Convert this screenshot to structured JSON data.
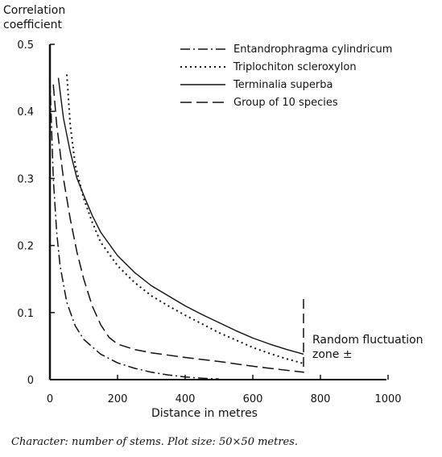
{
  "caption": "Character: number of stems.  Plot size: 50×50 metres.",
  "annotation": {
    "line1": "Random fluctuation",
    "line2": "zone ±"
  },
  "chart_data": {
    "type": "line",
    "ylabel_lines": [
      "Correlation",
      "coefficient"
    ],
    "xlabel": "Distance in metres",
    "xlim": [
      0,
      1000
    ],
    "ylim": [
      0,
      0.5
    ],
    "x_ticks": [
      "0",
      "200",
      "400",
      "600",
      "800",
      "1000"
    ],
    "y_ticks": [
      "0",
      "0.1",
      "0.2",
      "0.3",
      "0.4",
      "0.5"
    ],
    "legend_position": "top-right",
    "series": [
      {
        "name": "Entandrophragma cylindricum",
        "style": "dash-dot",
        "x": [
          0,
          10,
          20,
          30,
          50,
          75,
          100,
          150,
          200,
          250,
          300,
          350,
          400,
          450,
          500
        ],
        "y": [
          0.45,
          0.3,
          0.22,
          0.17,
          0.115,
          0.08,
          0.06,
          0.038,
          0.025,
          0.017,
          0.011,
          0.007,
          0.004,
          0.002,
          0.001
        ]
      },
      {
        "name": "Triplochiton scleroxylon",
        "style": "dotted",
        "x": [
          50,
          60,
          75,
          100,
          125,
          150,
          200,
          250,
          300,
          350,
          400,
          450,
          500,
          550,
          600,
          650,
          700,
          750
        ],
        "y": [
          0.455,
          0.38,
          0.32,
          0.27,
          0.235,
          0.205,
          0.17,
          0.145,
          0.125,
          0.11,
          0.096,
          0.083,
          0.07,
          0.059,
          0.048,
          0.039,
          0.031,
          0.024
        ]
      },
      {
        "name": "Terminalia superba",
        "style": "solid",
        "x": [
          25,
          40,
          60,
          80,
          100,
          125,
          150,
          200,
          250,
          300,
          350,
          400,
          450,
          500,
          550,
          600,
          650,
          700,
          750
        ],
        "y": [
          0.45,
          0.39,
          0.34,
          0.3,
          0.275,
          0.245,
          0.22,
          0.185,
          0.16,
          0.14,
          0.125,
          0.11,
          0.097,
          0.085,
          0.073,
          0.062,
          0.053,
          0.045,
          0.038
        ]
      },
      {
        "name": "Group of 10 species",
        "style": "long-dash",
        "x": [
          10,
          20,
          40,
          60,
          80,
          100,
          125,
          150,
          175,
          200,
          250,
          300,
          400,
          500,
          600,
          700,
          750
        ],
        "y": [
          0.44,
          0.38,
          0.3,
          0.24,
          0.19,
          0.15,
          0.11,
          0.082,
          0.063,
          0.053,
          0.045,
          0.04,
          0.033,
          0.027,
          0.02,
          0.014,
          0.011
        ]
      }
    ]
  }
}
